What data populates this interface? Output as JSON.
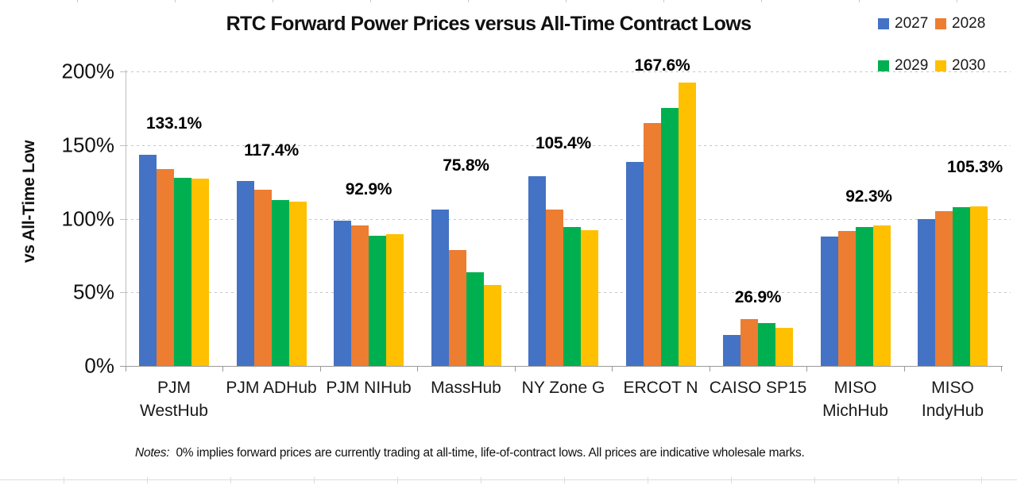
{
  "chart_data": {
    "type": "bar",
    "title": "RTC Forward Power Prices versus All-Time Contract Lows",
    "ylabel": "vs All-Time Low",
    "xlabel": "",
    "ylim": [
      0,
      200
    ],
    "y_ticks": [
      {
        "label": "0%",
        "value": 0
      },
      {
        "label": "50%",
        "value": 50
      },
      {
        "label": "100%",
        "value": 100
      },
      {
        "label": "150%",
        "value": 150
      },
      {
        "label": "200%",
        "value": 200
      }
    ],
    "grid": "horizontal-dashed",
    "legend_position": "top-right",
    "categories": [
      "PJM\nWestHub",
      "PJM ADHub",
      "PJM NIHub",
      "MassHub",
      "NY Zone G",
      "ERCOT N",
      "CAISO SP15",
      "MISO\nMichHub",
      "MISO\nIndyHub"
    ],
    "series": [
      {
        "name": "2027",
        "color": "#4472C4",
        "values": [
          143.6,
          125.4,
          98.6,
          106.0,
          129.0,
          138.3,
          21.2,
          87.8,
          100.0
        ]
      },
      {
        "name": "2028",
        "color": "#ED7D31",
        "values": [
          133.8,
          119.8,
          95.5,
          78.6,
          106.2,
          164.7,
          31.7,
          91.7,
          105.0
        ]
      },
      {
        "name": "2029",
        "color": "#00B050",
        "values": [
          128.0,
          112.8,
          88.3,
          63.8,
          94.4,
          175.0,
          29.0,
          94.1,
          107.9
        ]
      },
      {
        "name": "2030",
        "color": "#FFC000",
        "values": [
          127.1,
          111.7,
          89.3,
          54.8,
          92.1,
          192.5,
          25.9,
          95.6,
          108.3
        ]
      }
    ],
    "group_avg_labels": [
      "133.1%",
      "117.4%",
      "92.9%",
      "75.8%",
      "105.4%",
      "167.6%",
      "26.9%",
      "92.3%",
      "105.3%"
    ]
  },
  "notes": {
    "label": "Notes:",
    "text": "0% implies forward prices are currently trading at all-time, life-of-contract lows. All prices are indicative wholesale marks."
  }
}
